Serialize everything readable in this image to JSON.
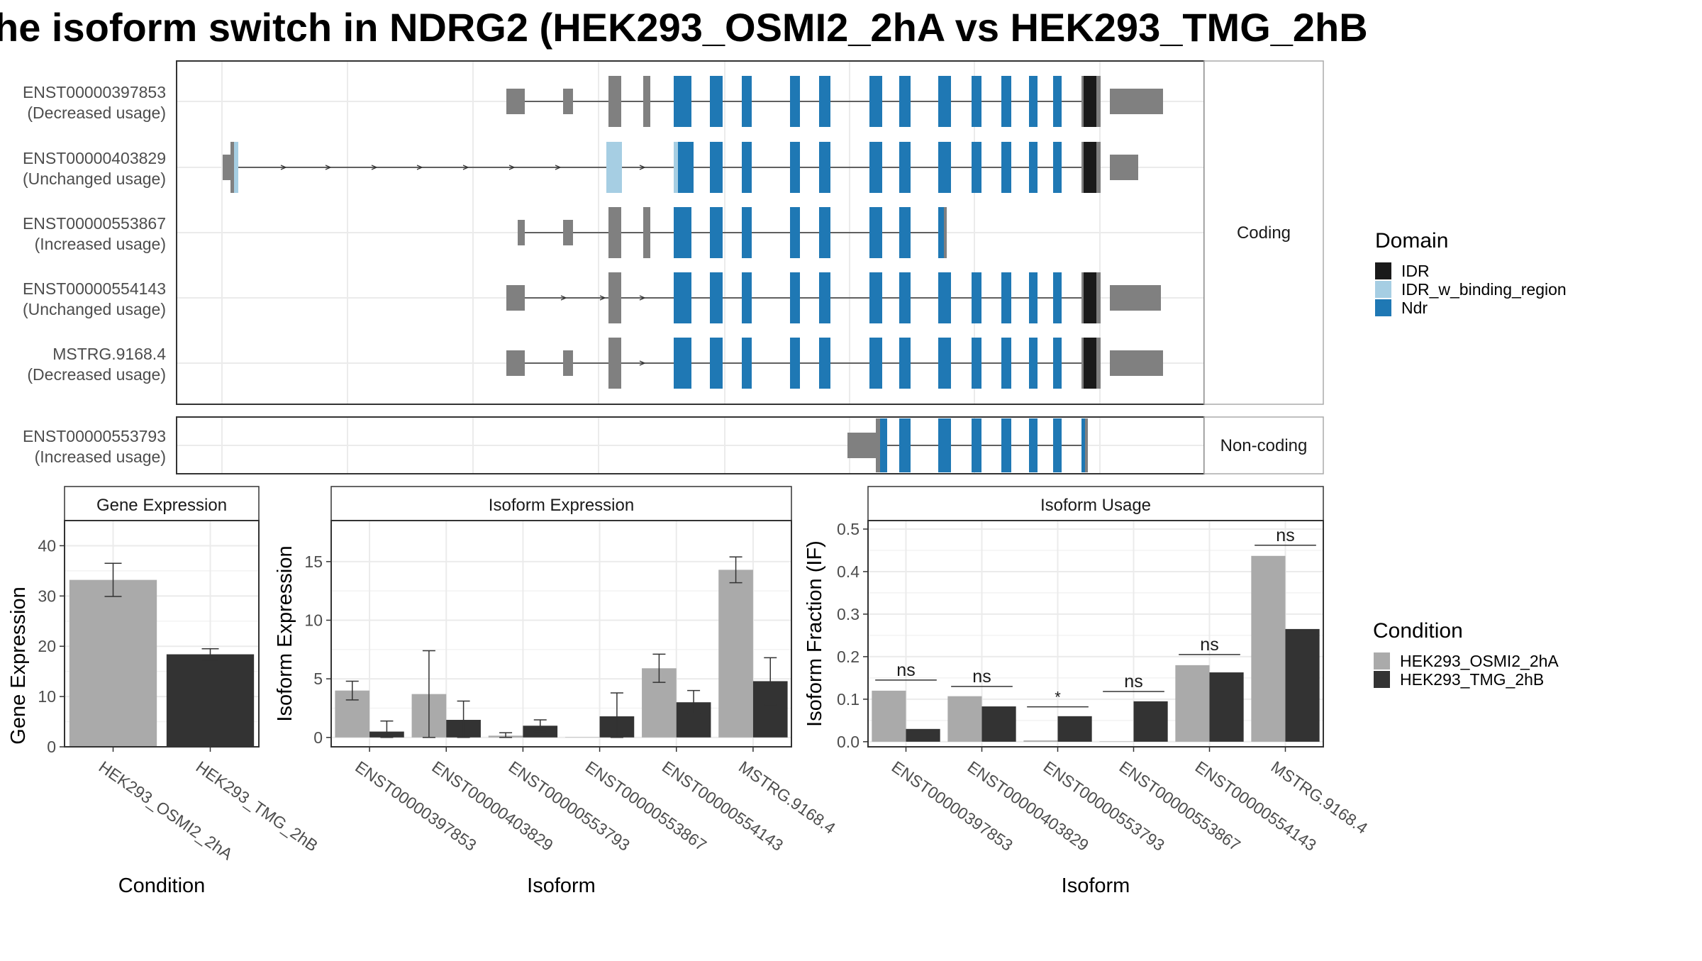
{
  "title": "he isoform switch in NDRG2 (HEK293_OSMI2_2hA vs HEK293_TMG_2hB",
  "colors": {
    "panel_border": "#333333",
    "strip_border": "#aaaaaa",
    "grid": "#ebebeb",
    "utr": "#808080",
    "cds_plain": "#808080",
    "intron": "#333333",
    "cond_a": "#aaaaaa",
    "cond_b": "#333333",
    "domain_IDR": "#1a1a1a",
    "domain_IDR_w_binding_region": "#a6cee3",
    "domain_Ndr": "#1f78b4"
  },
  "structure": {
    "panels": [
      {
        "strip": "Coding",
        "isoforms": [
          {
            "id": "ENST00000397853",
            "usage": "(Decreased usage)",
            "key": "i397853"
          },
          {
            "id": "ENST00000403829",
            "usage": "(Unchanged usage)",
            "key": "i403829"
          },
          {
            "id": "ENST00000553867",
            "usage": "(Increased usage)",
            "key": "i553867"
          },
          {
            "id": "ENST00000554143",
            "usage": "(Unchanged usage)",
            "key": "i554143"
          },
          {
            "id": "MSTRG.9168.4",
            "usage": "(Decreased usage)",
            "key": "mstrg"
          }
        ]
      },
      {
        "strip": "Non-coding",
        "isoforms": [
          {
            "id": "ENST00000553793",
            "usage": "(Increased usage)",
            "key": "i553793"
          }
        ]
      }
    ],
    "legend": {
      "title": "Domain",
      "items": [
        {
          "label": "IDR",
          "color": "#1a1a1a"
        },
        {
          "label": "IDR_w_binding_region",
          "color": "#a6cee3"
        },
        {
          "label": "Ndr",
          "color": "#1f78b4"
        }
      ]
    }
  },
  "chart_data": [
    {
      "type": "bar",
      "title": "Gene Expression",
      "xlabel": "Condition",
      "ylabel": "Gene Expression",
      "ylim": [
        0,
        45
      ],
      "yticks": [
        0,
        10,
        20,
        30,
        40
      ],
      "categories": [
        "HEK293_OSMI2_2hA",
        "HEK293_TMG_2hB"
      ],
      "series": [
        {
          "values": [
            33.2,
            18.4
          ],
          "err_low": [
            29.9,
            17.3
          ],
          "err_high": [
            36.5,
            19.5
          ],
          "color": "#aaaaaa"
        }
      ],
      "bar_colors": [
        "#aaaaaa",
        "#333333"
      ]
    },
    {
      "type": "bar",
      "title": "Isoform Expression",
      "xlabel": "Isoform",
      "ylabel": "Isoform Expression",
      "ylim": [
        -0.8,
        18.5
      ],
      "yticks": [
        0,
        5,
        10,
        15
      ],
      "categories": [
        "ENST00000397853",
        "ENST00000403829",
        "ENST00000553793",
        "ENST00000553867",
        "ENST00000554143",
        "MSTRG.9168.4"
      ],
      "series": [
        {
          "name": "HEK293_OSMI2_2hA",
          "values": [
            4.0,
            3.7,
            0.15,
            0.0,
            5.9,
            14.3
          ],
          "err_low": [
            3.2,
            0.0,
            0.0,
            0.0,
            4.7,
            13.2
          ],
          "err_high": [
            4.8,
            7.4,
            0.4,
            0.0,
            7.1,
            15.4
          ]
        },
        {
          "name": "HEK293_TMG_2hB",
          "values": [
            0.5,
            1.5,
            1.0,
            1.8,
            3.0,
            4.8
          ],
          "err_low": [
            0.0,
            0.0,
            0.5,
            0.0,
            2.0,
            2.8
          ],
          "err_high": [
            1.4,
            3.1,
            1.5,
            3.8,
            4.0,
            6.8
          ]
        }
      ]
    },
    {
      "type": "bar",
      "title": "Isoform Usage",
      "xlabel": "Isoform",
      "ylabel": "Isoform Fraction (IF)",
      "ylim": [
        -0.012,
        0.52
      ],
      "yticks": [
        0.0,
        0.1,
        0.2,
        0.3,
        0.4,
        0.5
      ],
      "ytick_labels": [
        "0.0",
        "0.1",
        "0.2",
        "0.3",
        "0.4",
        "0.5"
      ],
      "categories": [
        "ENST00000397853",
        "ENST00000403829",
        "ENST00000553793",
        "ENST00000553867",
        "ENST00000554143",
        "MSTRG.9168.4"
      ],
      "series": [
        {
          "name": "HEK293_OSMI2_2hA",
          "values": [
            0.12,
            0.107,
            0.003,
            0.0,
            0.18,
            0.437
          ]
        },
        {
          "name": "HEK293_TMG_2hB",
          "values": [
            0.03,
            0.083,
            0.06,
            0.095,
            0.163,
            0.265
          ]
        }
      ],
      "significance": [
        "ns",
        "ns",
        "*",
        "ns",
        "ns",
        "ns"
      ],
      "sig_levels": [
        0.145,
        0.13,
        0.082,
        0.118,
        0.205,
        0.462
      ]
    }
  ],
  "condition_legend": {
    "title": "Condition",
    "items": [
      {
        "label": "HEK293_OSMI2_2hA",
        "color": "#aaaaaa"
      },
      {
        "label": "HEK293_TMG_2hB",
        "color": "#333333"
      }
    ]
  }
}
